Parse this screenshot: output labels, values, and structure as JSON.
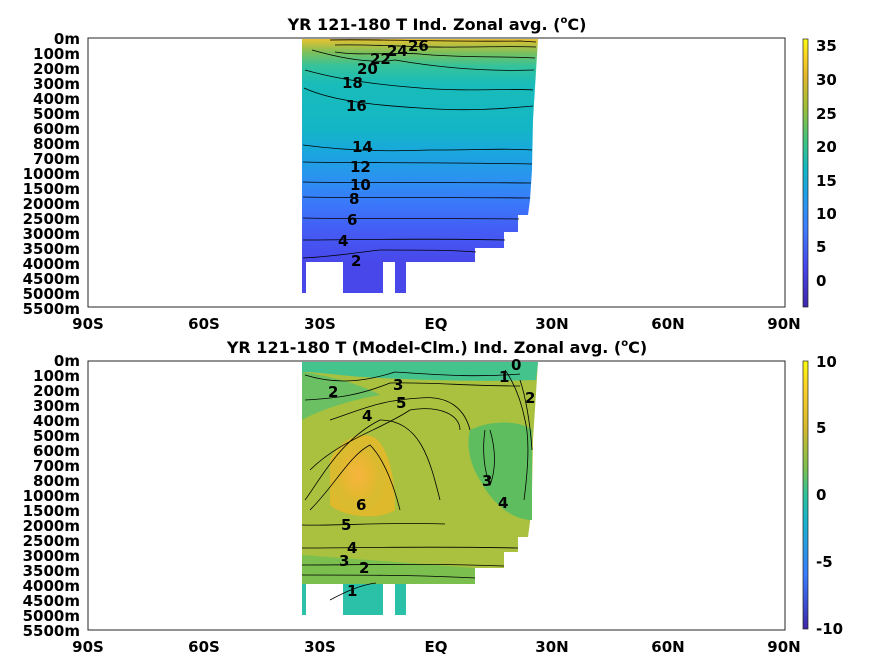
{
  "chart_data": [
    {
      "type": "heatmap",
      "title": "YR 121-180 T Ind. Zonal avg. (",
      "title_sup": "o",
      "title_tail": "C)",
      "x_ticks": [
        "90S",
        "60S",
        "30S",
        "EQ",
        "30N",
        "60N",
        "90N"
      ],
      "y_ticks": [
        "0m",
        "100m",
        "200m",
        "300m",
        "400m",
        "500m",
        "600m",
        "700m",
        "800m",
        "1000m",
        "1500m",
        "2000m",
        "2500m",
        "3000m",
        "3500m",
        "4000m",
        "4500m",
        "5000m",
        "5500m"
      ],
      "colorbar": {
        "ticks": [
          "35",
          "30",
          "25",
          "20",
          "15",
          "10",
          "5",
          "0"
        ],
        "range": [
          -3.5,
          36
        ]
      },
      "contour_labels": [
        "26",
        "24",
        "22",
        "20",
        "18",
        "16",
        "14",
        "12",
        "10",
        "8",
        "6",
        "4",
        "2"
      ],
      "grid": false
    },
    {
      "type": "heatmap",
      "title": "YR 121-180 T (Model-Clm.) Ind. Zonal avg. (",
      "title_sup": "o",
      "title_tail": "C)",
      "x_ticks": [
        "90S",
        "60S",
        "30S",
        "EQ",
        "30N",
        "60N",
        "90N"
      ],
      "y_ticks": [
        "0m",
        "100m",
        "200m",
        "300m",
        "400m",
        "500m",
        "600m",
        "700m",
        "800m",
        "1000m",
        "1500m",
        "2000m",
        "2500m",
        "3000m",
        "3500m",
        "4000m",
        "4500m",
        "5000m",
        "5500m"
      ],
      "colorbar": {
        "ticks": [
          "10",
          "5",
          "0",
          "-5",
          "-10"
        ],
        "range": [
          -10,
          10
        ]
      },
      "contour_labels": [
        "0",
        "1",
        "2",
        "3",
        "5",
        "4",
        "2",
        "3",
        "6",
        "4",
        "5",
        "4",
        "3",
        "2",
        "1"
      ],
      "grid": false
    }
  ],
  "colors": {
    "viridis_like": [
      "#3e26a8",
      "#4746eb",
      "#3e7ffe",
      "#1fa0e8",
      "#14b8c2",
      "#3fc380",
      "#9bbf3a",
      "#e2b72c",
      "#fdd624",
      "#f9fb0e"
    ]
  }
}
